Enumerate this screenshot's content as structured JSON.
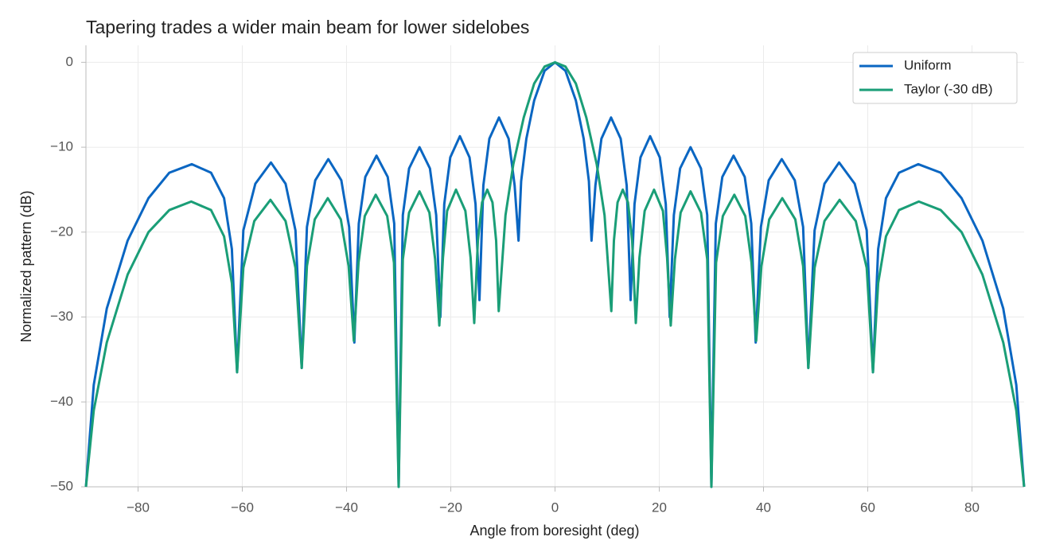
{
  "chart_data": {
    "type": "line",
    "title": "Tapering trades a wider main beam for lower sidelobes",
    "x_label": "Angle from boresight (deg)",
    "y_label": "Normalized pattern (dB)",
    "xlim": [
      -90,
      90
    ],
    "ylim": [
      -50,
      2
    ],
    "xticks": [
      {
        "value": -80,
        "label": "−80"
      },
      {
        "value": -60,
        "label": "−60"
      },
      {
        "value": -40,
        "label": "−40"
      },
      {
        "value": -20,
        "label": "−20"
      },
      0,
      20,
      40,
      60,
      80
    ],
    "yticks": [
      {
        "value": -50,
        "label": "−50"
      },
      {
        "value": -40,
        "label": "−40"
      },
      {
        "value": -30,
        "label": "−30"
      },
      {
        "value": -20,
        "label": "−20"
      },
      {
        "value": -10,
        "label": "−10"
      },
      0
    ],
    "grid": true,
    "legend": "upper right",
    "series": [
      {
        "name": "Uniform",
        "color": "#0a66c2",
        "x": [
          -90,
          -88.5,
          -86,
          -82,
          -78,
          -74,
          -69.7,
          -66,
          -63.5,
          -62,
          -61,
          -59.8,
          -57.5,
          -54.5,
          -51.7,
          -49.8,
          -48.6,
          -47.6,
          -46,
          -43.5,
          -41,
          -39.5,
          -38.5,
          -37.65,
          -36.4,
          -34.25,
          -32.1,
          -30.85,
          -30,
          -29.2,
          -28,
          -26,
          -24,
          -22.8,
          -22,
          -21.25,
          -20.1,
          -18.25,
          -16.4,
          -15.25,
          -14.5,
          -13.75,
          -12.6,
          -10.75,
          -8.9,
          -7.75,
          -7,
          -6.5,
          -5.5,
          -4,
          -2,
          0,
          2,
          4,
          5.5,
          6.5,
          7,
          7.75,
          8.9,
          10.75,
          12.6,
          13.75,
          14.5,
          15.25,
          16.4,
          18.25,
          20.1,
          21.25,
          22,
          22.8,
          24,
          26,
          28,
          29.2,
          30,
          30.85,
          32.1,
          34.25,
          36.4,
          37.65,
          38.5,
          39.5,
          41,
          43.5,
          46,
          47.6,
          48.6,
          49.8,
          51.7,
          54.5,
          57.5,
          59.8,
          61,
          62,
          63.5,
          66,
          69.7,
          74,
          78,
          82,
          86,
          88.5,
          90
        ],
        "values": [
          -50,
          -38,
          -29,
          -21,
          -16,
          -13,
          -12,
          -13,
          -16,
          -22,
          -36.5,
          -19.8,
          -14.3,
          -11.8,
          -14.3,
          -19.8,
          -36,
          -19.4,
          -13.9,
          -11.4,
          -13.9,
          -19.4,
          -33,
          -19,
          -13.5,
          -11,
          -13.5,
          -19,
          -50,
          -18,
          -12.5,
          -10,
          -12.5,
          -18,
          -30,
          -16.7,
          -11.2,
          -8.7,
          -11.2,
          -16.7,
          -28,
          -14.5,
          -9,
          -6.5,
          -9,
          -14.5,
          -21,
          -14,
          -9,
          -4.5,
          -1,
          0,
          -1,
          -4.5,
          -9,
          -14,
          -21,
          -14.5,
          -9,
          -6.5,
          -9,
          -14.5,
          -28,
          -16.7,
          -11.2,
          -8.7,
          -11.2,
          -16.7,
          -30,
          -18,
          -12.5,
          -10,
          -12.5,
          -18,
          -50,
          -19,
          -13.5,
          -11,
          -13.5,
          -19,
          -33,
          -19.4,
          -13.9,
          -11.4,
          -13.9,
          -19.4,
          -36,
          -19.8,
          -14.3,
          -11.8,
          -14.3,
          -19.8,
          -36.5,
          -22,
          -16,
          -13,
          -12,
          -13,
          -16,
          -21,
          -29,
          -38,
          -50
        ]
      },
      {
        "name": "Taylor (-30 dB)",
        "color": "#1a9e77",
        "x": [
          -90,
          -88.5,
          -86,
          -82,
          -78,
          -74,
          -69.8,
          -66,
          -63.5,
          -62,
          -61,
          -59.8,
          -57.7,
          -54.6,
          -51.7,
          -49.8,
          -48.6,
          -47.6,
          -46.1,
          -43.6,
          -41.1,
          -39.6,
          -38.6,
          -37.7,
          -36.5,
          -34.4,
          -32.2,
          -30.9,
          -30,
          -29.2,
          -28,
          -26,
          -24.1,
          -23,
          -22.2,
          -21.5,
          -20.7,
          -19,
          -17.2,
          -16.2,
          -15.5,
          -14.8,
          -14,
          -13,
          -12,
          -11.3,
          -10.8,
          -9.5,
          -8,
          -6,
          -4,
          -2,
          0,
          2,
          4,
          6,
          8,
          9.5,
          10.8,
          11.3,
          12,
          13,
          14,
          14.8,
          15.5,
          16.2,
          17.2,
          19,
          20.7,
          21.5,
          22.2,
          23,
          24.1,
          26,
          28,
          29.2,
          30,
          30.9,
          32.2,
          34.4,
          36.5,
          37.7,
          38.6,
          39.6,
          41.1,
          43.6,
          46.1,
          47.6,
          48.6,
          49.8,
          51.7,
          54.6,
          57.7,
          59.8,
          61,
          62,
          63.5,
          66,
          69.8,
          74,
          78,
          82,
          86,
          88.5,
          90
        ],
        "values": [
          -50,
          -41,
          -33,
          -25,
          -20,
          -17.4,
          -16.4,
          -17.4,
          -20.5,
          -26,
          -36.5,
          -24.2,
          -18.7,
          -16.2,
          -18.7,
          -24.2,
          -36,
          -24,
          -18.5,
          -16,
          -18.5,
          -24,
          -32.8,
          -23.6,
          -18.1,
          -15.6,
          -18.1,
          -23.6,
          -50,
          -23.2,
          -17.7,
          -15.2,
          -17.7,
          -23.2,
          -31,
          -23,
          -17.5,
          -15,
          -17.5,
          -23,
          -30.7,
          -21,
          -16.5,
          -15,
          -16.5,
          -21,
          -29.3,
          -18,
          -12,
          -6.5,
          -2.5,
          -0.5,
          0,
          -0.5,
          -2.5,
          -6.5,
          -12,
          -18,
          -29.3,
          -21,
          -16.5,
          -15,
          -16.5,
          -21,
          -30.7,
          -23,
          -17.5,
          -15,
          -17.5,
          -23,
          -31,
          -23.2,
          -17.7,
          -15.2,
          -17.7,
          -23.2,
          -50,
          -23.6,
          -18.1,
          -15.6,
          -18.1,
          -23.6,
          -32.8,
          -24,
          -18.5,
          -16,
          -18.5,
          -24,
          -36,
          -24.2,
          -18.7,
          -16.2,
          -18.7,
          -24.2,
          -36.5,
          -26,
          -20.5,
          -17.4,
          -16.4,
          -17.4,
          -20,
          -25,
          -33,
          -41,
          -50
        ]
      }
    ]
  }
}
